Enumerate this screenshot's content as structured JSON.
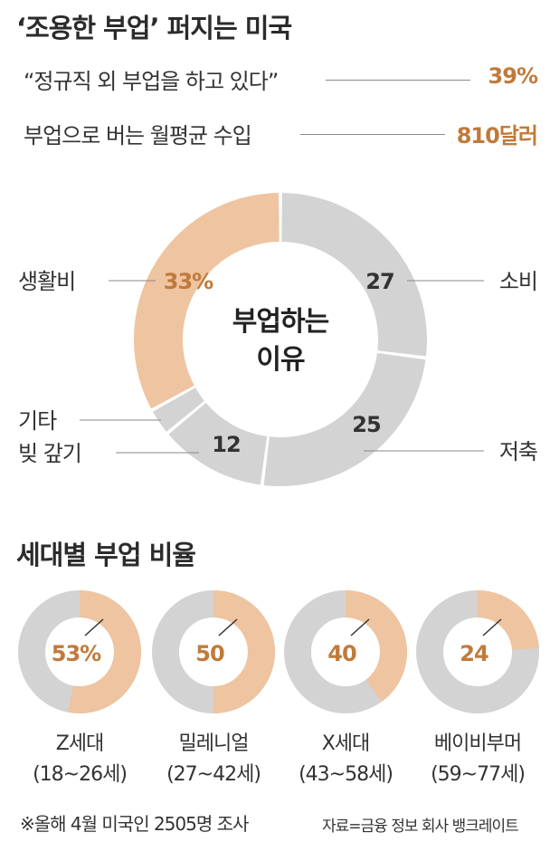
{
  "title": "‘조용한 부업’ 퍼지는 미국",
  "stats": [
    {
      "label": "“정규직 외 부업을 하고 있다”",
      "value": "39%"
    },
    {
      "label": "부업으로 버는 월평균 수입",
      "value": "810달러"
    }
  ],
  "colors": {
    "accent": "#efc4a0",
    "base": "#d3d3d3",
    "highlight_text": "#c07a3a"
  },
  "chart_data": [
    {
      "type": "pie",
      "donut": true,
      "title": "부업하는 이유",
      "center_lines": [
        "부업하는",
        "이유"
      ],
      "slices": [
        {
          "label": "소비",
          "value": 27,
          "value_label": "27",
          "highlight": false
        },
        {
          "label": "저축",
          "value": 25,
          "value_label": "25",
          "highlight": false
        },
        {
          "label": "빚 갚기",
          "value": 12,
          "value_label": "12",
          "highlight": false
        },
        {
          "label": "기타",
          "value": 3,
          "value_label": "",
          "highlight": false
        },
        {
          "label": "생활비",
          "value": 33,
          "value_label": "33%",
          "highlight": true
        }
      ]
    },
    {
      "type": "pie",
      "donut": true,
      "title": "세대별 부업 비율",
      "items": [
        {
          "name": "Z세대",
          "range": "(18~26세)",
          "value": 53,
          "value_label": "53%"
        },
        {
          "name": "밀레니얼",
          "range": "(27~42세)",
          "value": 50,
          "value_label": "50"
        },
        {
          "name": "X세대",
          "range": "(43~58세)",
          "value": 40,
          "value_label": "40"
        },
        {
          "name": "베이비부머",
          "range": "(59~77세)",
          "value": 24,
          "value_label": "24"
        }
      ]
    }
  ],
  "footnote": "※올해 4월 미국인 2505명 조사",
  "source": "자료=금융 정보 회사 뱅크레이트"
}
